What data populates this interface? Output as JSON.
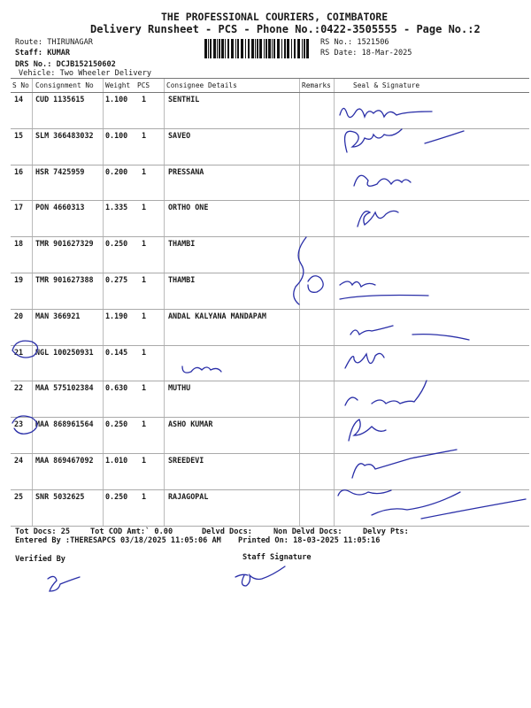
{
  "header": {
    "company": "THE PROFESSIONAL COURIERS, COIMBATORE",
    "subtitle": "Delivery Runsheet - PCS - Phone No.:0422-3505555 - Page No.:2",
    "route": "Route: THIRUNAGAR",
    "staff": "Staff: KUMAR",
    "drs_no": "DRS No.: DCJB152150602",
    "vehicle": "Vehicle: Two Wheeler Delivery",
    "rs_no": "RS No.: 1521506",
    "rs_date": "RS Date: 18-Mar-2025"
  },
  "table": {
    "columns": [
      "S No",
      "Consignment No",
      "Weight",
      "PCS",
      "Consignee Details",
      "Remarks",
      "Seal & Signature"
    ],
    "rows": [
      {
        "sno": "14",
        "consignment": "CUD 1135615",
        "weight": "1.100",
        "pcs": "1",
        "consignee": "SENTHIL"
      },
      {
        "sno": "15",
        "consignment": "SLM 366483032",
        "weight": "0.100",
        "pcs": "1",
        "consignee": "SAVEO"
      },
      {
        "sno": "16",
        "consignment": "HSR 7425959",
        "weight": "0.200",
        "pcs": "1",
        "consignee": "PRESSANA"
      },
      {
        "sno": "17",
        "consignment": "PON 4660313",
        "weight": "1.335",
        "pcs": "1",
        "consignee": "ORTHO ONE"
      },
      {
        "sno": "18",
        "consignment": "TMR 901627329",
        "weight": "0.250",
        "pcs": "1",
        "consignee": "THAMBI"
      },
      {
        "sno": "19",
        "consignment": "TMR 901627388",
        "weight": "0.275",
        "pcs": "1",
        "consignee": "THAMBI"
      },
      {
        "sno": "20",
        "consignment": "MAN 366921",
        "weight": "1.190",
        "pcs": "1",
        "consignee": "ANDAL KALYANA MANDAPAM"
      },
      {
        "sno": "21",
        "consignment": "NGL 100250931",
        "weight": "0.145",
        "pcs": "1",
        "consignee": ""
      },
      {
        "sno": "22",
        "consignment": "MAA 575102384",
        "weight": "0.630",
        "pcs": "1",
        "consignee": "MUTHU"
      },
      {
        "sno": "23",
        "consignment": "MAA 868961564",
        "weight": "0.250",
        "pcs": "1",
        "consignee": "ASHO KUMAR"
      },
      {
        "sno": "24",
        "consignment": "MAA 869467092",
        "weight": "1.010",
        "pcs": "1",
        "consignee": "SREEDEVI"
      },
      {
        "sno": "25",
        "consignment": "SNR 5032625",
        "weight": "0.250",
        "pcs": "1",
        "consignee": "RAJAGOPAL"
      }
    ]
  },
  "footer": {
    "tot_docs": "Tot Docs:  25",
    "tot_cod": "Tot COD Amt:`  0.00",
    "delvd_docs": "Delvd Docs:",
    "non_delvd_docs": "Non Delvd Docs:",
    "delvy_pts": "Delvy Pts:",
    "entered_by": "Entered By :THERESAPCS 03/18/2025 11:05:06 AM",
    "printed_on": "Printed On: 18-03-2025 11:05:16",
    "verified_by": "Verified By",
    "staff_signature": "Staff Signature"
  },
  "colors": {
    "ink": "#2a2fa8",
    "text": "#1a1a1a"
  }
}
